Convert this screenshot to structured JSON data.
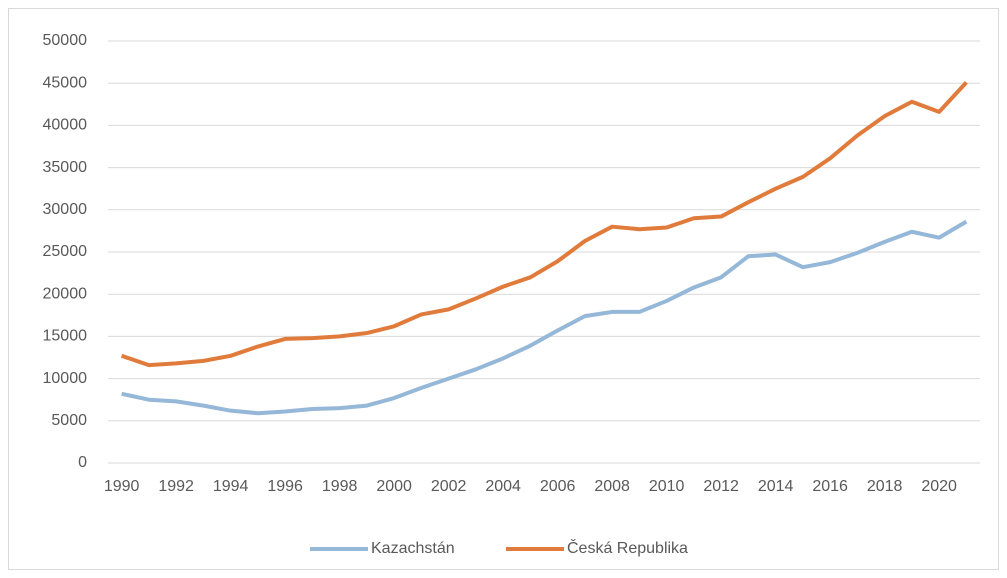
{
  "chart_data": {
    "type": "line",
    "x": [
      1990,
      1991,
      1992,
      1993,
      1994,
      1995,
      1996,
      1997,
      1998,
      1999,
      2000,
      2001,
      2002,
      2003,
      2004,
      2005,
      2006,
      2007,
      2008,
      2009,
      2010,
      2011,
      2012,
      2013,
      2014,
      2015,
      2016,
      2017,
      2018,
      2019,
      2020,
      2021
    ],
    "series": [
      {
        "name": "Kazachstán",
        "color": "#95b7d8",
        "values": [
          8200,
          7500,
          7300,
          6800,
          6200,
          5900,
          6100,
          6400,
          6500,
          6800,
          7700,
          8900,
          10000,
          11100,
          12400,
          13900,
          15700,
          17400,
          17900,
          17900,
          19200,
          20800,
          22000,
          24500,
          24700,
          23200,
          23800,
          24900,
          26200,
          27400,
          26700,
          28600
        ]
      },
      {
        "name": "Česká Republika",
        "color": "#e07b3c",
        "values": [
          12700,
          11600,
          11800,
          12100,
          12700,
          13800,
          14700,
          14800,
          15000,
          15400,
          16200,
          17600,
          18200,
          19500,
          20900,
          22000,
          23900,
          26300,
          28000,
          27700,
          27900,
          29000,
          29200,
          30900,
          32500,
          33900,
          36100,
          38800,
          41100,
          42800,
          41600,
          45100
        ]
      }
    ],
    "xlim": [
      1989.5,
      2021.5
    ],
    "xticks": [
      1990,
      1992,
      1994,
      1996,
      1998,
      2000,
      2002,
      2004,
      2006,
      2008,
      2010,
      2012,
      2014,
      2016,
      2018,
      2020
    ],
    "ylim": [
      0,
      50000
    ],
    "yticks": [
      0,
      5000,
      10000,
      15000,
      20000,
      25000,
      30000,
      35000,
      40000,
      45000,
      50000
    ],
    "grid": true,
    "legend": "bottom"
  }
}
